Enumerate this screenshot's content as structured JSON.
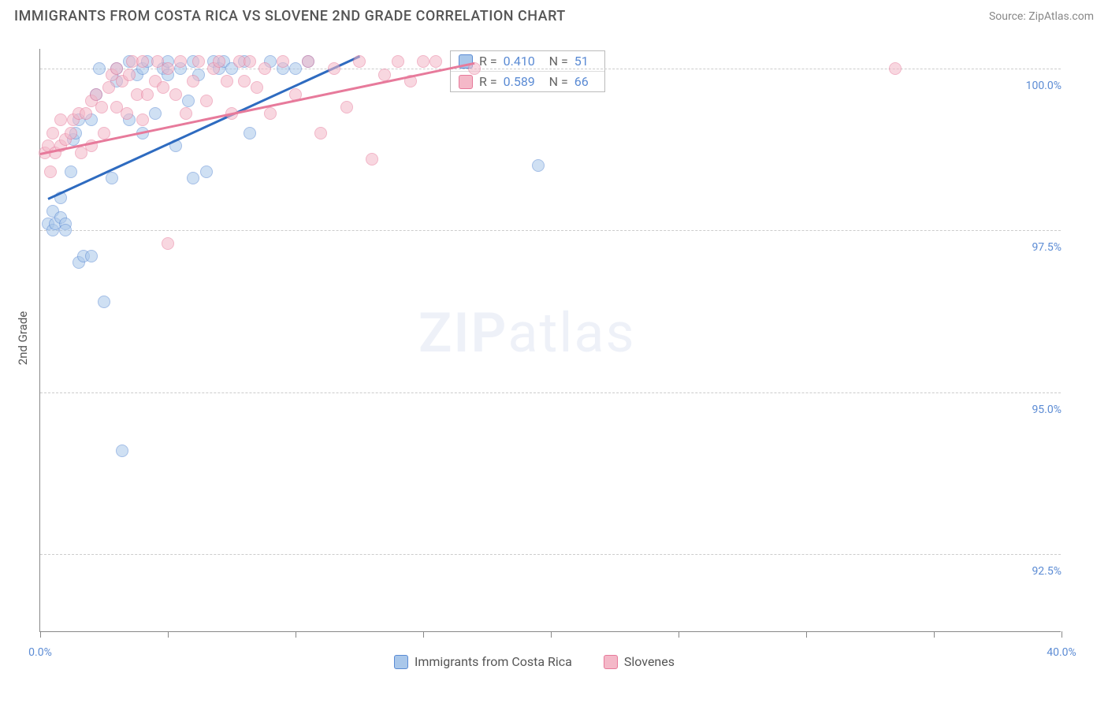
{
  "title": "IMMIGRANTS FROM COSTA RICA VS SLOVENE 2ND GRADE CORRELATION CHART",
  "source": "Source: ZipAtlas.com",
  "watermark_zip": "ZIP",
  "watermark_atlas": "atlas",
  "yaxis_title": "2nd Grade",
  "chart": {
    "type": "scatter",
    "xlim": [
      0,
      40
    ],
    "ylim": [
      91.3,
      100.3
    ],
    "xticks": [
      0,
      5,
      10,
      15,
      20,
      25,
      30,
      35,
      40
    ],
    "xtick_labels": {
      "0": "0.0%",
      "40": "40.0%"
    },
    "yticks": [
      92.5,
      95.0,
      97.5,
      100.0
    ],
    "ytick_labels": [
      "92.5%",
      "95.0%",
      "97.5%",
      "100.0%"
    ],
    "grid_color": "#cccccc",
    "background_color": "#ffffff",
    "series": [
      {
        "name": "Immigrants from Costa Rica",
        "color_fill": "#a9c7ea",
        "color_stroke": "#5b8bd4",
        "R": "0.410",
        "N": "51",
        "trend": {
          "x1": 0.3,
          "y1": 98.0,
          "x2": 12.5,
          "y2": 100.2,
          "color": "#2e6bc0"
        },
        "points": [
          [
            0.3,
            97.6
          ],
          [
            0.5,
            97.5
          ],
          [
            0.5,
            97.8
          ],
          [
            0.6,
            97.6
          ],
          [
            0.8,
            98.0
          ],
          [
            0.8,
            97.7
          ],
          [
            1.0,
            97.6
          ],
          [
            1.0,
            97.5
          ],
          [
            1.2,
            98.4
          ],
          [
            1.3,
            98.9
          ],
          [
            1.4,
            99.0
          ],
          [
            1.5,
            99.2
          ],
          [
            1.5,
            97.0
          ],
          [
            1.7,
            97.1
          ],
          [
            2.0,
            97.1
          ],
          [
            2.0,
            99.2
          ],
          [
            2.2,
            99.6
          ],
          [
            2.3,
            100.0
          ],
          [
            2.5,
            96.4
          ],
          [
            2.8,
            98.3
          ],
          [
            3.0,
            99.8
          ],
          [
            3.0,
            100.0
          ],
          [
            3.2,
            94.1
          ],
          [
            3.5,
            99.2
          ],
          [
            3.5,
            100.1
          ],
          [
            3.8,
            99.9
          ],
          [
            4.0,
            100.0
          ],
          [
            4.0,
            99.0
          ],
          [
            4.2,
            100.1
          ],
          [
            4.5,
            99.3
          ],
          [
            4.8,
            100.0
          ],
          [
            5.0,
            99.9
          ],
          [
            5.0,
            100.1
          ],
          [
            5.3,
            98.8
          ],
          [
            5.5,
            100.0
          ],
          [
            5.8,
            99.5
          ],
          [
            6.0,
            98.3
          ],
          [
            6.0,
            100.1
          ],
          [
            6.2,
            99.9
          ],
          [
            6.5,
            98.4
          ],
          [
            6.8,
            100.1
          ],
          [
            7.0,
            100.0
          ],
          [
            7.2,
            100.1
          ],
          [
            7.5,
            100.0
          ],
          [
            8.0,
            100.1
          ],
          [
            8.2,
            99.0
          ],
          [
            9.0,
            100.1
          ],
          [
            9.5,
            100.0
          ],
          [
            10.0,
            100.0
          ],
          [
            10.5,
            100.1
          ],
          [
            19.5,
            98.5
          ]
        ]
      },
      {
        "name": "Slovenes",
        "color_fill": "#f4b8c8",
        "color_stroke": "#e77a9b",
        "R": "0.589",
        "N": "66",
        "trend": {
          "x1": 0.0,
          "y1": 98.7,
          "x2": 17.0,
          "y2": 100.1,
          "color": "#e77a9b"
        },
        "points": [
          [
            0.2,
            98.7
          ],
          [
            0.3,
            98.8
          ],
          [
            0.4,
            98.4
          ],
          [
            0.5,
            99.0
          ],
          [
            0.6,
            98.7
          ],
          [
            0.8,
            98.8
          ],
          [
            0.8,
            99.2
          ],
          [
            1.0,
            98.9
          ],
          [
            1.2,
            99.0
          ],
          [
            1.3,
            99.2
          ],
          [
            1.5,
            99.3
          ],
          [
            1.6,
            98.7
          ],
          [
            1.8,
            99.3
          ],
          [
            2.0,
            98.8
          ],
          [
            2.0,
            99.5
          ],
          [
            2.2,
            99.6
          ],
          [
            2.4,
            99.4
          ],
          [
            2.5,
            99.0
          ],
          [
            2.7,
            99.7
          ],
          [
            2.8,
            99.9
          ],
          [
            3.0,
            99.4
          ],
          [
            3.0,
            100.0
          ],
          [
            3.2,
            99.8
          ],
          [
            3.4,
            99.3
          ],
          [
            3.5,
            99.9
          ],
          [
            3.6,
            100.1
          ],
          [
            3.8,
            99.6
          ],
          [
            4.0,
            99.2
          ],
          [
            4.0,
            100.1
          ],
          [
            4.2,
            99.6
          ],
          [
            4.5,
            99.8
          ],
          [
            4.6,
            100.1
          ],
          [
            4.8,
            99.7
          ],
          [
            5.0,
            100.0
          ],
          [
            5.0,
            97.3
          ],
          [
            5.3,
            99.6
          ],
          [
            5.5,
            100.1
          ],
          [
            5.7,
            99.3
          ],
          [
            6.0,
            99.8
          ],
          [
            6.2,
            100.1
          ],
          [
            6.5,
            99.5
          ],
          [
            6.8,
            100.0
          ],
          [
            7.0,
            100.1
          ],
          [
            7.3,
            99.8
          ],
          [
            7.5,
            99.3
          ],
          [
            7.8,
            100.1
          ],
          [
            8.0,
            99.8
          ],
          [
            8.2,
            100.1
          ],
          [
            8.5,
            99.7
          ],
          [
            8.8,
            100.0
          ],
          [
            9.0,
            99.3
          ],
          [
            9.5,
            100.1
          ],
          [
            10.0,
            99.6
          ],
          [
            10.5,
            100.1
          ],
          [
            11.0,
            99.0
          ],
          [
            11.5,
            100.0
          ],
          [
            12.0,
            99.4
          ],
          [
            12.5,
            100.1
          ],
          [
            13.0,
            98.6
          ],
          [
            13.5,
            99.9
          ],
          [
            14.0,
            100.1
          ],
          [
            14.5,
            99.8
          ],
          [
            15.0,
            100.1
          ],
          [
            15.5,
            100.1
          ],
          [
            17.0,
            100.0
          ],
          [
            33.5,
            100.0
          ]
        ]
      }
    ]
  },
  "legend_bottom": [
    {
      "label": "Immigrants from Costa Rica",
      "fill": "#a9c7ea",
      "stroke": "#5b8bd4"
    },
    {
      "label": "Slovenes",
      "fill": "#f4b8c8",
      "stroke": "#e77a9b"
    }
  ]
}
